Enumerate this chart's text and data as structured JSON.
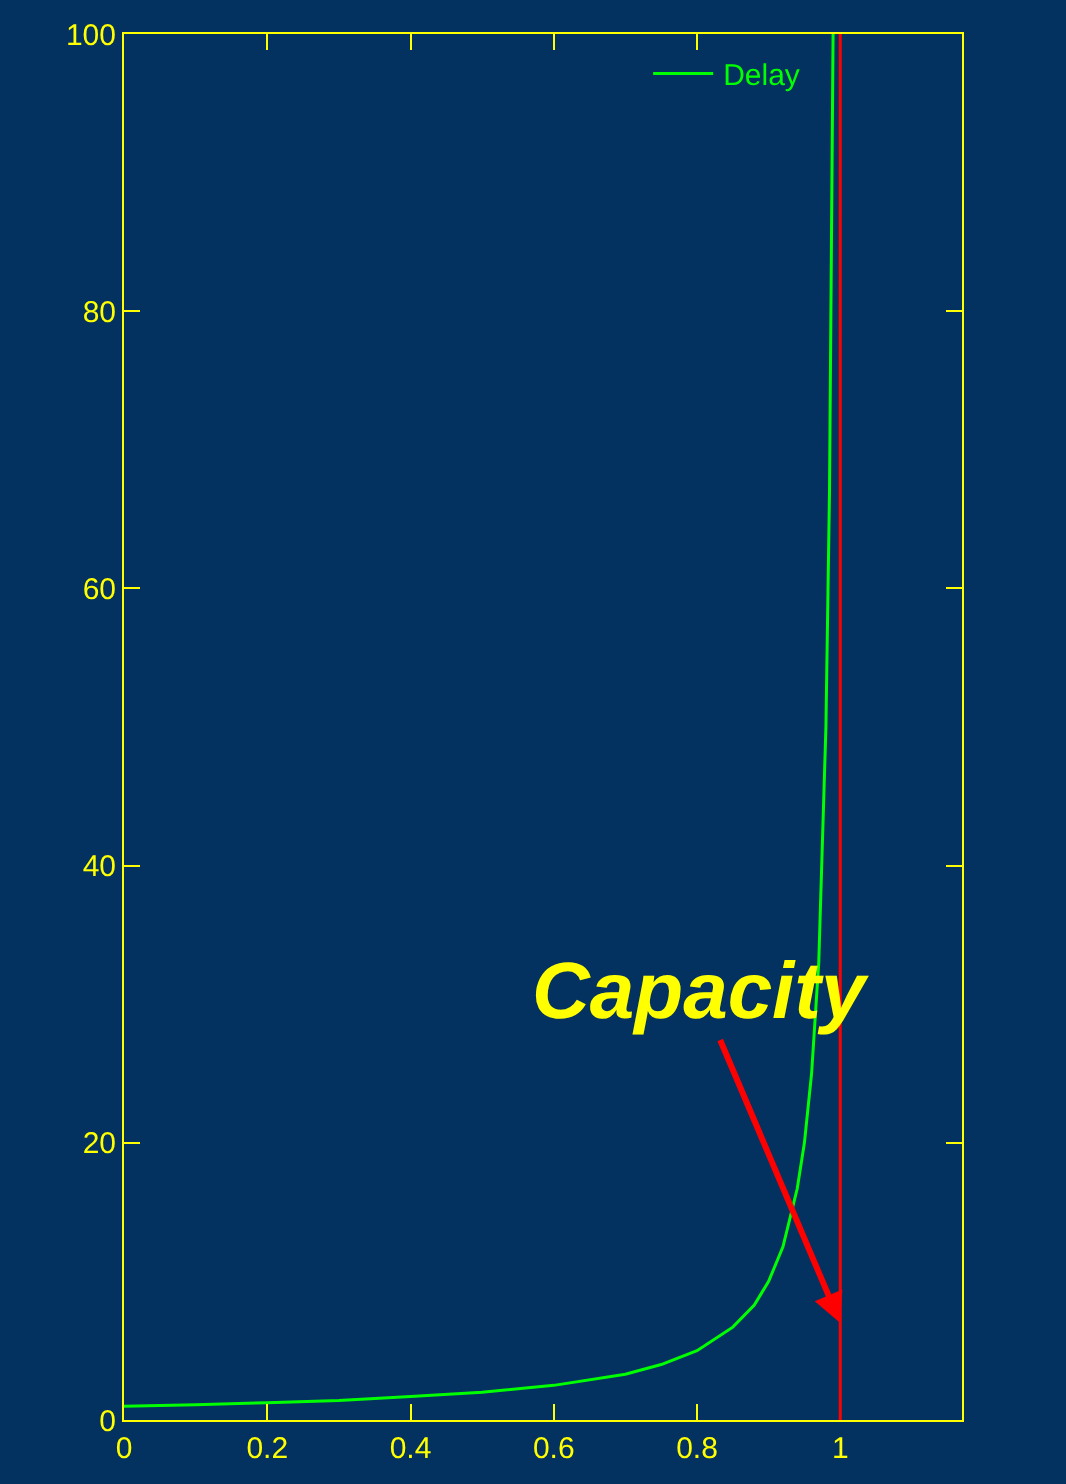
{
  "chart_data": {
    "type": "line",
    "x": [
      0,
      0.1,
      0.2,
      0.3,
      0.4,
      0.5,
      0.6,
      0.7,
      0.75,
      0.8,
      0.85,
      0.88,
      0.9,
      0.92,
      0.94,
      0.95,
      0.96,
      0.97,
      0.98,
      0.985,
      0.99
    ],
    "series": [
      {
        "name": "Delay",
        "color": "#00ff00",
        "values": [
          1,
          1.1,
          1.25,
          1.4,
          1.7,
          2,
          2.5,
          3.3,
          4,
          5,
          6.7,
          8.3,
          10,
          12.5,
          16.7,
          20,
          25,
          33,
          50,
          67,
          100
        ]
      }
    ],
    "xlim": [
      0,
      1.17
    ],
    "xticks": [
      0,
      0.2,
      0.4,
      0.6,
      0.8,
      1
    ],
    "ylim": [
      0,
      100
    ],
    "yticks": [
      0,
      20,
      40,
      60,
      80,
      100
    ],
    "ref_lines": [
      {
        "axis": "x",
        "value": 1,
        "color": "#ff0000"
      }
    ],
    "annotations": [
      {
        "text": "Capacity",
        "x": 1,
        "y": 7
      }
    ],
    "grid": false,
    "legend": "top right",
    "marker": "none",
    "line_style": "solid"
  }
}
